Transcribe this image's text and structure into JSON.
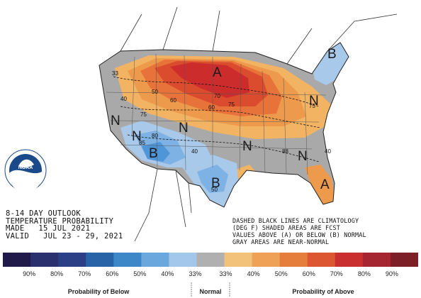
{
  "map": {
    "region_labels": [
      {
        "text": "A",
        "loc": "north-plains"
      },
      {
        "text": "B",
        "loc": "new-england"
      },
      {
        "text": "N",
        "loc": "northwest"
      },
      {
        "text": "N",
        "loc": "southwest"
      },
      {
        "text": "N",
        "loc": "rockies"
      },
      {
        "text": "N",
        "loc": "mid-south"
      },
      {
        "text": "N",
        "loc": "ohio-valley"
      },
      {
        "text": "N",
        "loc": "southeast"
      },
      {
        "text": "B",
        "loc": "arizona"
      },
      {
        "text": "B",
        "loc": "texas"
      },
      {
        "text": "A",
        "loc": "florida"
      }
    ],
    "contour_labels": [
      "33",
      "40",
      "50",
      "60",
      "70",
      "60",
      "75",
      "75",
      "80",
      "85",
      "40",
      "50",
      "75",
      "88",
      "40"
    ],
    "colors": {
      "above_33": "#f2b463",
      "above_40": "#ee9a4c",
      "above_50": "#e8733a",
      "above_60": "#db4b2d",
      "above_70": "#cc2d2c",
      "below_33": "#a9c9ea",
      "below_40": "#7fb2e4",
      "below_50": "#4f96d8",
      "normal": "#a9a9a9"
    }
  },
  "info": {
    "line1": "8-14 DAY OUTLOOK",
    "line2": "TEMPERATURE PROBABILITY",
    "line3": "MADE   15 JUL 2021",
    "line4": "VALID   JUL 23 - 29, 2021"
  },
  "notes": {
    "line1": "DASHED BLACK LINES ARE CLIMATOLOGY",
    "line2": "(DEG F) SHADED AREAS ARE FCST",
    "line3": "VALUES ABOVE (A) OR BELOW (B) NORMAL",
    "line4": "GRAY AREAS ARE NEAR-NORMAL"
  },
  "logo": {
    "text": "NOAA"
  },
  "legend": {
    "below_swatches": [
      "#201a4a",
      "#2a2f6e",
      "#2b3f86",
      "#2863a8",
      "#3d86c8",
      "#6aa7dd",
      "#a3c7ea"
    ],
    "normal_swatch": "#b0b0b0",
    "above_swatches": [
      "#f3c27a",
      "#eea157",
      "#e57d3c",
      "#dc5631",
      "#ca2f2f",
      "#a52630",
      "#7c1f26"
    ],
    "ticks": [
      "90%",
      "80%",
      "70%",
      "60%",
      "50%",
      "40%",
      "33%",
      "33%",
      "40%",
      "50%",
      "60%",
      "70%",
      "80%",
      "90%"
    ],
    "below_label": "Probability of Below",
    "normal_label": "Normal",
    "above_label": "Probability of Above"
  }
}
